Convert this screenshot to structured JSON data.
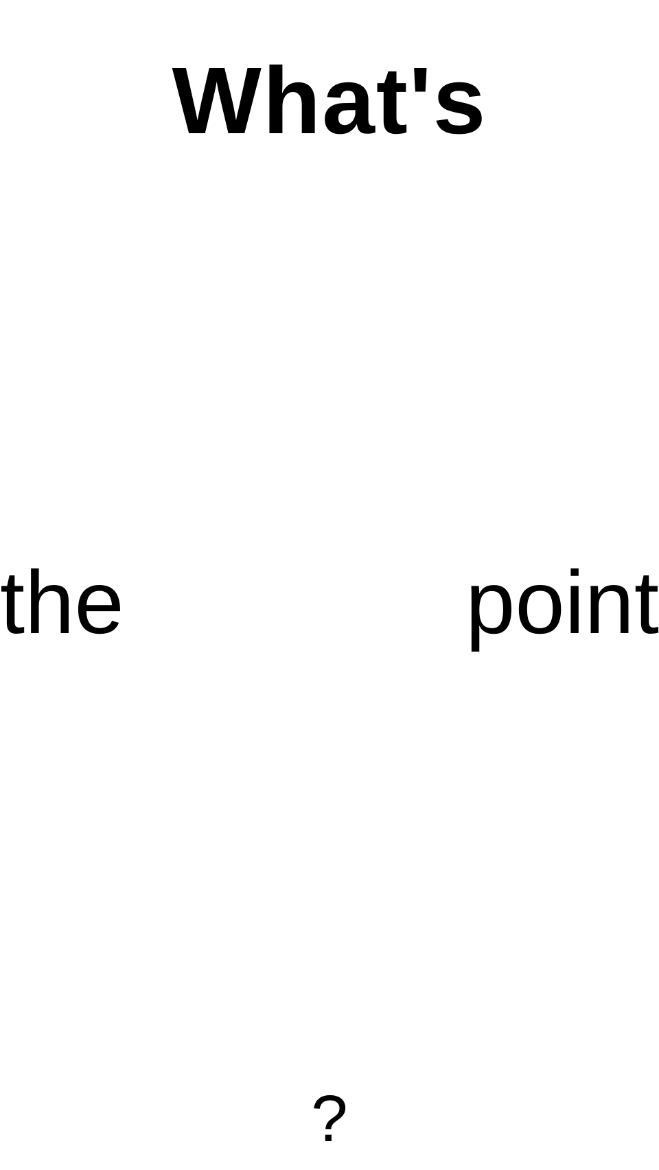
{
  "words": {
    "headline": "What's",
    "left": "the",
    "right": "point",
    "bottom": "?"
  },
  "colors": {
    "background": "#ffffff",
    "text": "#000000"
  }
}
